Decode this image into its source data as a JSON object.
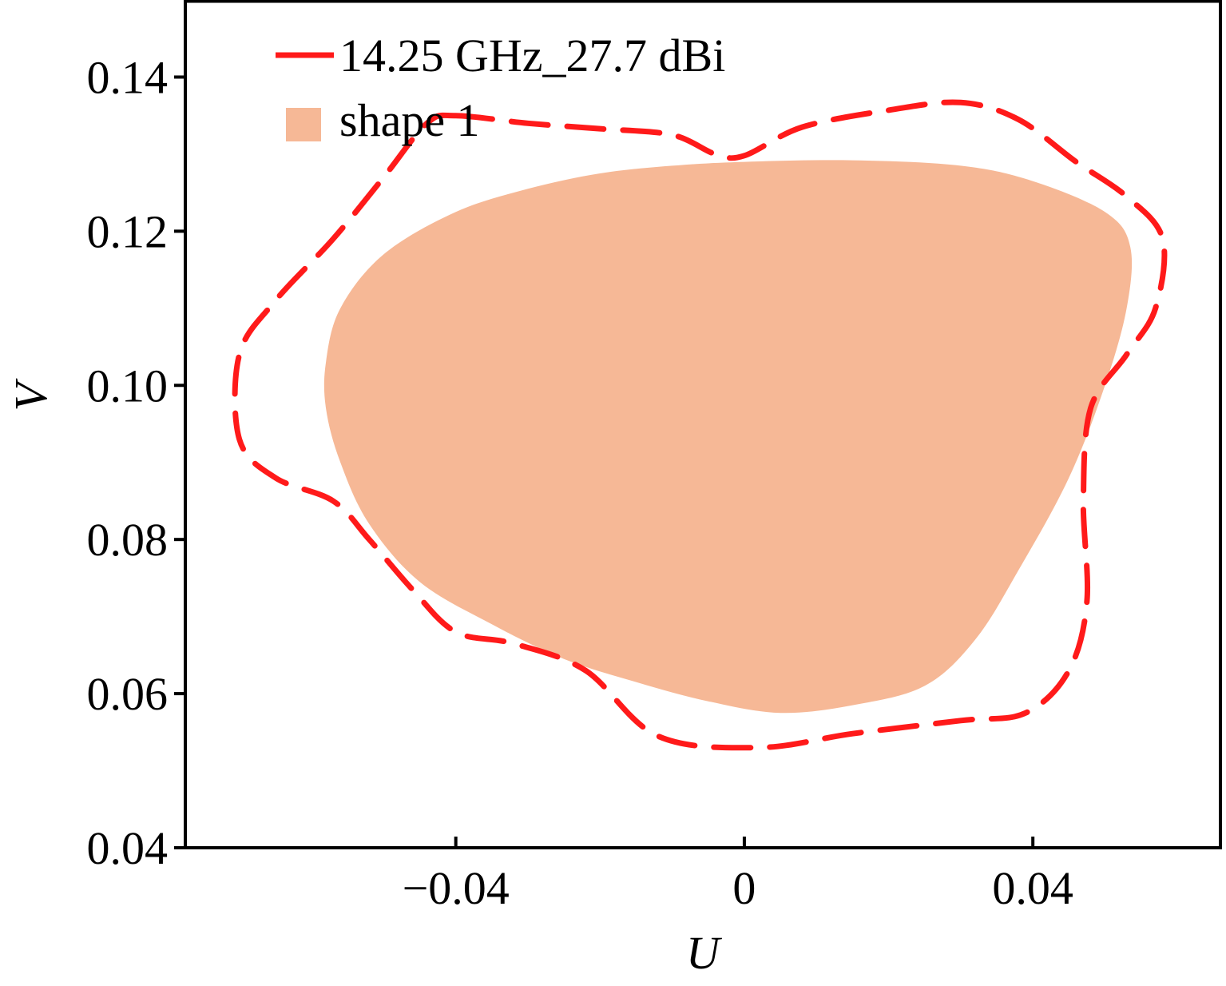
{
  "chart_data": {
    "type": "area",
    "xlabel": "U",
    "ylabel": "V",
    "xlim": [
      -0.0775,
      0.066
    ],
    "ylim": [
      0.04,
      0.15
    ],
    "x_ticks": [
      -0.04,
      0,
      0.04
    ],
    "x_tick_labels": [
      "−0.04",
      "0",
      "0.04"
    ],
    "y_ticks": [
      0.04,
      0.06,
      0.08,
      0.1,
      0.12,
      0.14
    ],
    "y_tick_labels": [
      "0.04",
      "0.06",
      "0.08",
      "0.10",
      "0.12",
      "0.14"
    ],
    "grid": false,
    "legend": {
      "position": "top-left",
      "entries": [
        {
          "label": "14.25 GHz_27.7 dBi",
          "kind": "dashed-line",
          "color": "#ff1a1a"
        },
        {
          "label": "shape 1",
          "kind": "filled-patch",
          "color": "#f6b896"
        }
      ]
    },
    "series": [
      {
        "name": "14.25 GHz_27.7 dBi",
        "kind": "dashed-contour",
        "color": "#ff1a1a",
        "points": [
          [
            -0.04,
            0.135
          ],
          [
            -0.03,
            0.134
          ],
          [
            -0.02,
            0.1333
          ],
          [
            -0.01,
            0.1325
          ],
          [
            -0.004,
            0.13
          ],
          [
            0.0,
            0.1298
          ],
          [
            0.008,
            0.1335
          ],
          [
            0.02,
            0.1357
          ],
          [
            0.03,
            0.1367
          ],
          [
            0.038,
            0.1345
          ],
          [
            0.046,
            0.129
          ],
          [
            0.053,
            0.1245
          ],
          [
            0.058,
            0.119
          ],
          [
            0.057,
            0.11
          ],
          [
            0.053,
            0.104
          ],
          [
            0.048,
            0.097
          ],
          [
            0.047,
            0.085
          ],
          [
            0.0475,
            0.072
          ],
          [
            0.045,
            0.063
          ],
          [
            0.039,
            0.0575
          ],
          [
            0.03,
            0.0565
          ],
          [
            0.015,
            0.0548
          ],
          [
            0.002,
            0.053
          ],
          [
            -0.012,
            0.0545
          ],
          [
            -0.022,
            0.063
          ],
          [
            -0.032,
            0.0665
          ],
          [
            -0.04,
            0.068
          ],
          [
            -0.046,
            0.0735
          ],
          [
            -0.052,
            0.08
          ],
          [
            -0.057,
            0.085
          ],
          [
            -0.065,
            0.088
          ],
          [
            -0.07,
            0.093
          ],
          [
            -0.07,
            0.104
          ],
          [
            -0.065,
            0.111
          ],
          [
            -0.057,
            0.119
          ],
          [
            -0.05,
            0.127
          ],
          [
            -0.044,
            0.134
          ]
        ]
      },
      {
        "name": "shape 1",
        "kind": "filled-region",
        "color": "#f6b896",
        "points": [
          [
            -0.058,
            0.103
          ],
          [
            -0.056,
            0.11
          ],
          [
            -0.05,
            0.117
          ],
          [
            -0.04,
            0.1225
          ],
          [
            -0.03,
            0.1255
          ],
          [
            -0.02,
            0.1275
          ],
          [
            -0.01,
            0.1285
          ],
          [
            0.0,
            0.129
          ],
          [
            0.015,
            0.1292
          ],
          [
            0.03,
            0.1285
          ],
          [
            0.04,
            0.1265
          ],
          [
            0.05,
            0.1225
          ],
          [
            0.0535,
            0.118
          ],
          [
            0.053,
            0.11
          ],
          [
            0.05,
            0.1
          ],
          [
            0.045,
            0.088
          ],
          [
            0.038,
            0.076
          ],
          [
            0.032,
            0.067
          ],
          [
            0.025,
            0.061
          ],
          [
            0.015,
            0.0585
          ],
          [
            0.005,
            0.0575
          ],
          [
            -0.005,
            0.059
          ],
          [
            -0.015,
            0.0615
          ],
          [
            -0.025,
            0.0645
          ],
          [
            -0.035,
            0.069
          ],
          [
            -0.045,
            0.0745
          ],
          [
            -0.052,
            0.082
          ],
          [
            -0.056,
            0.09
          ],
          [
            -0.058,
            0.097
          ]
        ]
      }
    ]
  }
}
